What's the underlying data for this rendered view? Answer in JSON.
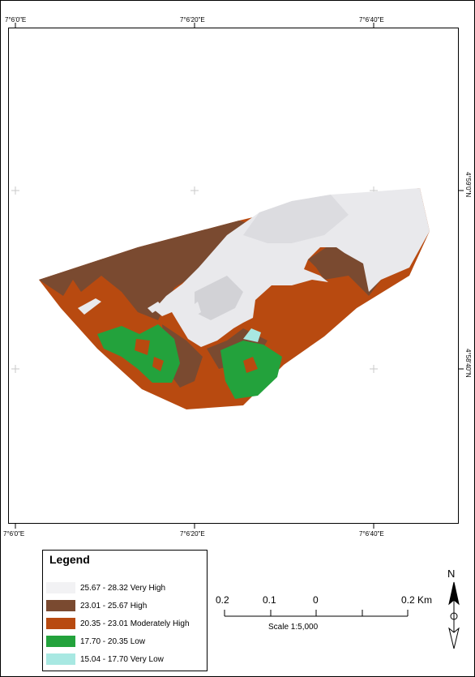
{
  "map": {
    "top_ticks": [
      "7°6'0\"E",
      "7°6'20\"E",
      "7°6'40\"E"
    ],
    "bottom_ticks": [
      "7°6'0\"E",
      "7°6'20\"E",
      "7°6'40\"E"
    ],
    "right_ticks": [
      "4°59'0\"N",
      "4°58'40\"N"
    ]
  },
  "legend": {
    "title": "Legend",
    "items": [
      {
        "label": "25.67 - 28.32 Very High",
        "color": "#f2f2f4"
      },
      {
        "label": "23.01 - 25.67 High",
        "color": "#7a4a30"
      },
      {
        "label": "20.35 - 23.01 Moderately High",
        "color": "#b84a10"
      },
      {
        "label": "17.70 - 20.35 Low",
        "color": "#23a23c"
      },
      {
        "label": "15.04 - 17.70 Very Low",
        "color": "#a8e8e2"
      }
    ]
  },
  "scalebar": {
    "labels": [
      "0.2",
      "0.1",
      "0",
      "0.2 Km"
    ],
    "caption": "Scale 1:5,000"
  },
  "north_arrow": {
    "label": "N"
  }
}
